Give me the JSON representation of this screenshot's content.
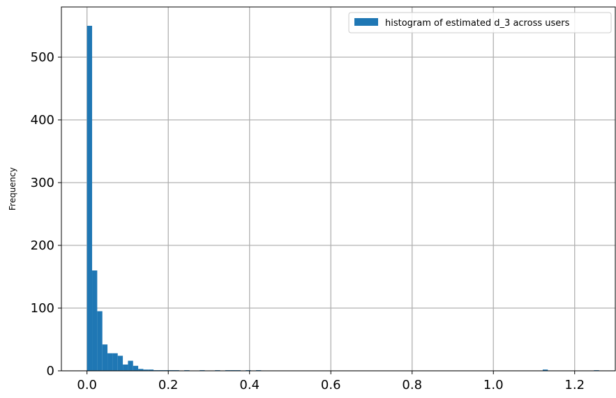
{
  "chart_data": {
    "type": "bar",
    "title": "",
    "xlabel": "",
    "ylabel": "Frequency",
    "xlim": [
      -0.063,
      1.3
    ],
    "ylim": [
      0,
      580
    ],
    "xticks": [
      0.0,
      0.2,
      0.4,
      0.6,
      0.8,
      1.0,
      1.2
    ],
    "xtick_labels": [
      "0.0",
      "0.2",
      "0.4",
      "0.6",
      "0.8",
      "1.0",
      "1.2"
    ],
    "yticks": [
      0,
      100,
      200,
      300,
      400,
      500
    ],
    "ytick_labels": [
      "0",
      "100",
      "200",
      "300",
      "400",
      "500"
    ],
    "grid": true,
    "legend_position": "top-right",
    "series": [
      {
        "name": "histogram of estimated d_3 across users",
        "color": "#1f77b4",
        "bin_start": 0.0,
        "bin_width": 0.0126,
        "bin_counts": [
          550,
          160,
          95,
          42,
          28,
          28,
          24,
          10,
          16,
          8,
          3,
          2,
          2,
          1,
          1,
          1,
          1,
          1,
          0,
          1,
          0,
          0,
          1,
          0,
          0,
          1,
          0,
          1,
          1,
          1,
          0,
          1,
          0,
          1,
          0,
          0,
          0,
          0,
          0,
          0,
          0,
          0,
          0,
          0,
          0,
          0,
          0,
          0,
          0,
          0,
          0,
          0,
          0,
          0,
          0,
          0,
          0,
          0,
          0,
          0,
          0,
          0,
          0,
          0,
          0,
          0,
          0,
          0,
          0,
          0,
          0,
          0,
          0,
          0,
          0,
          0,
          0,
          0,
          0,
          0,
          0,
          0,
          0,
          0,
          0,
          0,
          0,
          0,
          0,
          2,
          0,
          0,
          0,
          0,
          0,
          0,
          0,
          0,
          0,
          1
        ]
      }
    ]
  }
}
